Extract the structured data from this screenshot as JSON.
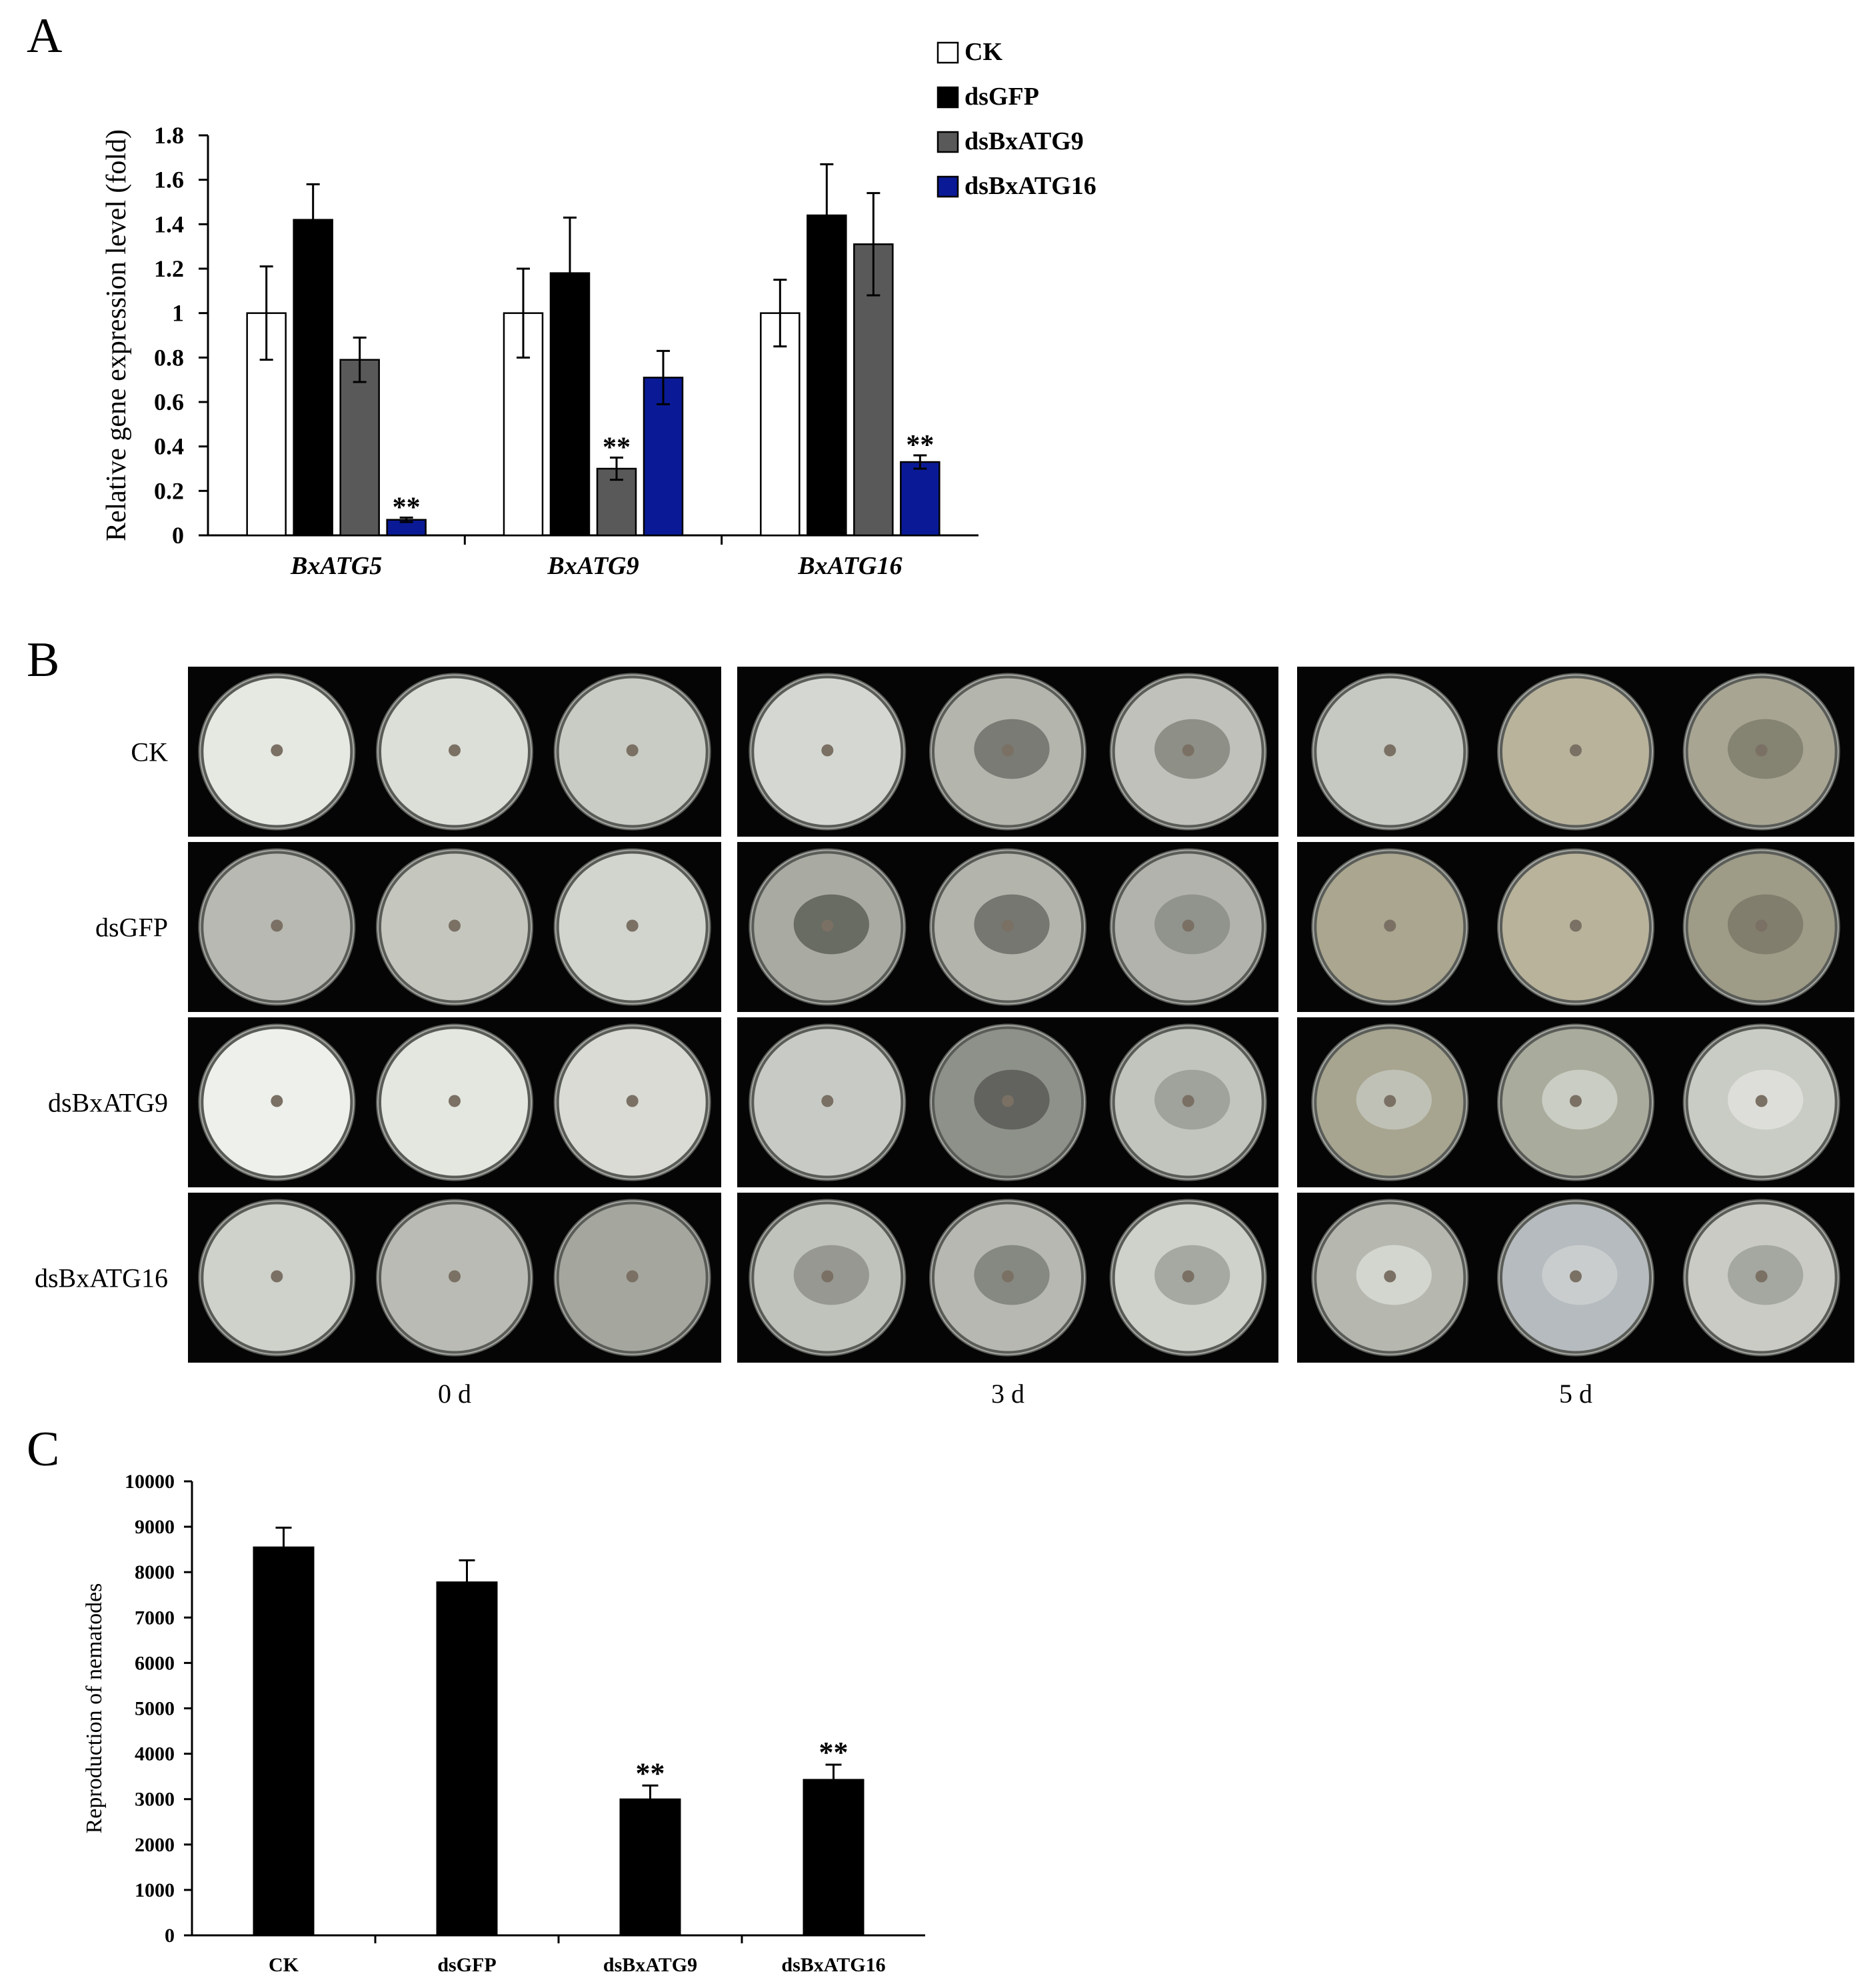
{
  "panel_labels": {
    "a": "A",
    "b": "B",
    "c": "C"
  },
  "chart_data": [
    {
      "type": "bar",
      "categories": [
        "BxATG5",
        "BxATG9",
        "BxATG16"
      ],
      "ylabel": "Relative gene expression level (fold)",
      "xlabel": "",
      "ylim": [
        0,
        1.8
      ],
      "yticks": [
        "0",
        "0.2",
        "0.4",
        "0.6",
        "0.8",
        "1",
        "1.2",
        "1.4",
        "1.6",
        "1.8"
      ],
      "legend_position": "top-right",
      "significance_mark": "**",
      "series": [
        {
          "name": "CK",
          "color": "#ffffff",
          "values": [
            1.0,
            1.0,
            1.0
          ],
          "errors": [
            0.21,
            0.2,
            0.15
          ],
          "significant": [
            false,
            false,
            false
          ]
        },
        {
          "name": "dsGFP",
          "color": "#000000",
          "values": [
            1.42,
            1.18,
            1.44
          ],
          "errors": [
            0.16,
            0.25,
            0.23
          ],
          "significant": [
            false,
            false,
            false
          ]
        },
        {
          "name": "dsBxATG9",
          "color": "#595959",
          "values": [
            0.79,
            0.3,
            1.31
          ],
          "errors": [
            0.1,
            0.05,
            0.23
          ],
          "significant": [
            false,
            true,
            false
          ]
        },
        {
          "name": "dsBxATG16",
          "color": "#0a1a96",
          "values": [
            0.07,
            0.71,
            0.33
          ],
          "errors": [
            0.01,
            0.12,
            0.03
          ],
          "significant": [
            true,
            false,
            true
          ]
        }
      ]
    },
    {
      "type": "bar",
      "categories": [
        "CK",
        "dsGFP",
        "dsBxATG9",
        "dsBxATG16"
      ],
      "ylabel": "Reproduction of nematodes",
      "xlabel": "",
      "ylim": [
        0,
        10000
      ],
      "yticks": [
        "0",
        "1000",
        "2000",
        "3000",
        "4000",
        "5000",
        "6000",
        "7000",
        "8000",
        "9000",
        "10000"
      ],
      "significance_mark": "**",
      "series": [
        {
          "color": "#000000",
          "values": [
            8550,
            7780,
            3000,
            3430
          ],
          "errors": [
            430,
            480,
            300,
            330
          ],
          "significant": [
            false,
            false,
            true,
            true
          ]
        }
      ]
    }
  ],
  "panel_b": {
    "row_labels": [
      "CK",
      "dsGFP",
      "dsBxATG9",
      "dsBxATG16"
    ],
    "time_labels": [
      "0 d",
      "3 d",
      "5 d"
    ],
    "plates": [
      [
        [
          {
            "tone": "#e6e8e2",
            "patch": ""
          },
          {
            "tone": "#dcdfd8",
            "patch": ""
          },
          {
            "tone": "#c9ccc4",
            "patch": ""
          }
        ],
        [
          {
            "tone": "#d5d8d2",
            "patch": ""
          },
          {
            "tone": "#b4b6ae",
            "patch": "#6f716a"
          },
          {
            "tone": "#bfc1ba",
            "patch": "#85877f"
          }
        ],
        [
          {
            "tone": "#c6c9c2",
            "patch": ""
          },
          {
            "tone": "#b9b39c",
            "patch": ""
          },
          {
            "tone": "#a8a593",
            "patch": "#7f7c6c"
          }
        ]
      ],
      [
        [
          {
            "tone": "#b7b9b2",
            "patch": ""
          },
          {
            "tone": "#c5c7bf",
            "patch": ""
          },
          {
            "tone": "#d2d4ce",
            "patch": ""
          }
        ],
        [
          {
            "tone": "#a9aba3",
            "patch": "#5e6058"
          },
          {
            "tone": "#b3b5ad",
            "patch": "#6a6c65"
          },
          {
            "tone": "#b1b3ac",
            "patch": "#8c8e86"
          }
        ],
        [
          {
            "tone": "#aaa68f",
            "patch": ""
          },
          {
            "tone": "#b9b39c",
            "patch": ""
          },
          {
            "tone": "#9e9b87",
            "patch": "#7c7968"
          }
        ]
      ],
      [
        [
          {
            "tone": "#eef0ec",
            "patch": ""
          },
          {
            "tone": "#e4e6e0",
            "patch": ""
          },
          {
            "tone": "#d9dbd4",
            "patch": ""
          }
        ],
        [
          {
            "tone": "#c8cbc5",
            "patch": ""
          },
          {
            "tone": "#8e908a",
            "patch": "#5a5c56"
          },
          {
            "tone": "#c2c4be",
            "patch": "#9a9c96"
          }
        ],
        [
          {
            "tone": "#a7a590",
            "patch": "#c4c6bd"
          },
          {
            "tone": "#a9ab9c",
            "patch": "#d0d2ca"
          },
          {
            "tone": "#c9cbc5",
            "patch": "#e0e2dc"
          }
        ]
      ],
      [
        [
          {
            "tone": "#cfd1cb",
            "patch": ""
          },
          {
            "tone": "#b9bbb4",
            "patch": ""
          },
          {
            "tone": "#a5a79f",
            "patch": ""
          }
        ],
        [
          {
            "tone": "#c0c2bc",
            "patch": "#8e9089"
          },
          {
            "tone": "#b6b8b1",
            "patch": "#7e8079"
          },
          {
            "tone": "#cfd1cb",
            "patch": "#9fa19b"
          }
        ],
        [
          {
            "tone": "#b6b8b0",
            "patch": "#d8dad4"
          },
          {
            "tone": "#b5bbbe",
            "patch": "#ccd0d0"
          },
          {
            "tone": "#cacbc5",
            "patch": "#9fa19a"
          }
        ]
      ]
    ]
  }
}
